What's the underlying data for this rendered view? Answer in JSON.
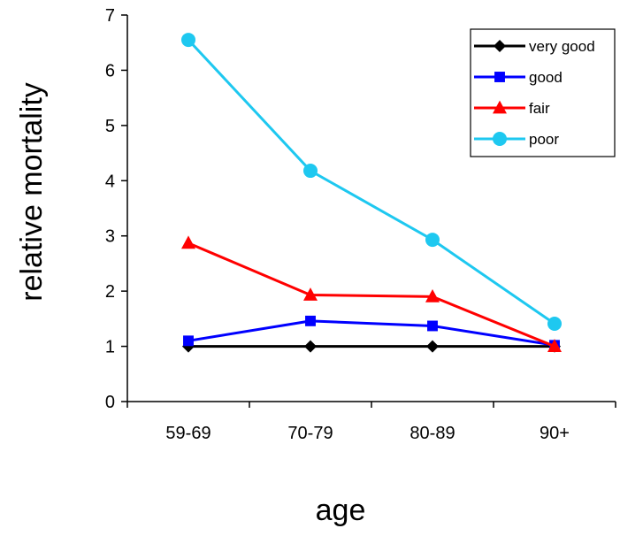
{
  "chart_data": {
    "type": "line",
    "title": "",
    "xlabel": "age",
    "ylabel": "relative mortality",
    "categories": [
      "59-69",
      "70-79",
      "80-89",
      "90+"
    ],
    "ylim": [
      0,
      7
    ],
    "yticks": [
      0,
      1,
      2,
      3,
      4,
      5,
      6,
      7
    ],
    "grid": false,
    "legend_position": "top-right",
    "series": [
      {
        "name": "very good",
        "values": [
          1,
          1,
          1,
          1
        ],
        "color": "#000000",
        "marker": "diamond"
      },
      {
        "name": "good",
        "values": [
          1.1,
          1.46,
          1.37,
          1.02
        ],
        "color": "#0000ff",
        "marker": "square"
      },
      {
        "name": "fair",
        "values": [
          2.87,
          1.93,
          1.9,
          1.0
        ],
        "color": "#ff0000",
        "marker": "triangle"
      },
      {
        "name": "poor",
        "values": [
          6.55,
          4.18,
          2.93,
          1.41
        ],
        "color": "#1ec8f0",
        "marker": "circle"
      }
    ]
  }
}
